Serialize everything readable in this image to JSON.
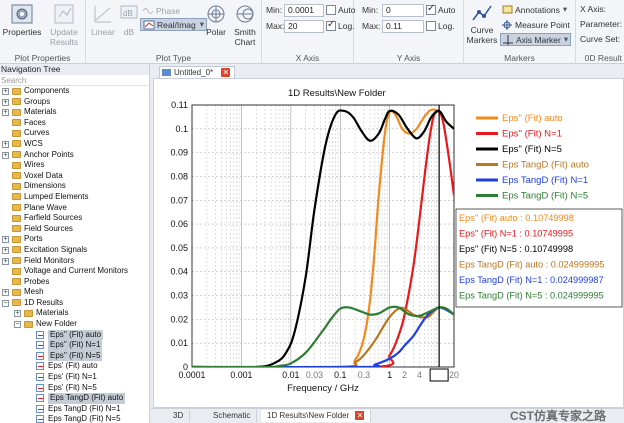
{
  "ribbon": {
    "plot_properties": {
      "label": "Plot Properties",
      "properties_btn": "Properties",
      "update_btn": "Update Results"
    },
    "plot_type": {
      "label": "Plot Type",
      "linear": "Linear",
      "db": "dB",
      "phase": "Phase",
      "real_imag": "Real/Imag",
      "polar": "Polar",
      "smith": "Smith Chart"
    },
    "x_axis": {
      "label": "X Axis",
      "min_label": "Min:",
      "min_value": "0.0001",
      "max_label": "Max:",
      "max_value": "20",
      "auto_label": "Auto",
      "auto_checked": false,
      "log_label": "Log.",
      "log_checked": true
    },
    "y_axis": {
      "label": "Y Axis",
      "min_label": "Min:",
      "min_value": "0",
      "max_label": "Max:",
      "max_value": "0.11",
      "auto_label": "Auto",
      "auto_checked": true,
      "log_label": "Log.",
      "log_checked": false
    },
    "markers": {
      "label": "Markers",
      "curve_markers": "Curve Markers",
      "annotations": "Annotations",
      "measure_point": "Measure Point",
      "axis_marker": "Axis Marker"
    },
    "od_results": {
      "label": "0D Result",
      "x_axis": "X Axis:",
      "parameter": "Parameter:",
      "curve_set": "Curve Set:"
    }
  },
  "nav": {
    "title": "Navigation Tree",
    "search_placeholder": "Search",
    "items": [
      {
        "label": "Components",
        "level": 0,
        "icon": "folder",
        "exp": "+"
      },
      {
        "label": "Groups",
        "level": 0,
        "icon": "folder",
        "exp": "+"
      },
      {
        "label": "Materials",
        "level": 0,
        "icon": "folder",
        "exp": "+"
      },
      {
        "label": "Faces",
        "level": 0,
        "icon": "folder",
        "exp": ""
      },
      {
        "label": "Curves",
        "level": 0,
        "icon": "folder",
        "exp": ""
      },
      {
        "label": "WCS",
        "level": 0,
        "icon": "folder",
        "exp": "+"
      },
      {
        "label": "Anchor Points",
        "level": 0,
        "icon": "folder",
        "exp": "+"
      },
      {
        "label": "Wires",
        "level": 0,
        "icon": "folder",
        "exp": ""
      },
      {
        "label": "Voxel Data",
        "level": 0,
        "icon": "folder",
        "exp": ""
      },
      {
        "label": "Dimensions",
        "level": 0,
        "icon": "folder",
        "exp": ""
      },
      {
        "label": "Lumped Elements",
        "level": 0,
        "icon": "folder",
        "exp": ""
      },
      {
        "label": "Plane Wave",
        "level": 0,
        "icon": "folder",
        "exp": ""
      },
      {
        "label": "Farfield Sources",
        "level": 0,
        "icon": "folder",
        "exp": ""
      },
      {
        "label": "Field Sources",
        "level": 0,
        "icon": "folder",
        "exp": ""
      },
      {
        "label": "Ports",
        "level": 0,
        "icon": "folder",
        "exp": "+"
      },
      {
        "label": "Excitation Signals",
        "level": 0,
        "icon": "folder",
        "exp": "+"
      },
      {
        "label": "Field Monitors",
        "level": 0,
        "icon": "folder",
        "exp": "+"
      },
      {
        "label": "Voltage and Current Monitors",
        "level": 0,
        "icon": "folder",
        "exp": ""
      },
      {
        "label": "Probes",
        "level": 0,
        "icon": "folder",
        "exp": ""
      },
      {
        "label": "Mesh",
        "level": 0,
        "icon": "folder",
        "exp": "+"
      },
      {
        "label": "1D Results",
        "level": 0,
        "icon": "folder",
        "exp": "−"
      },
      {
        "label": "Materials",
        "level": 1,
        "icon": "folder",
        "exp": "+"
      },
      {
        "label": "New Folder",
        "level": 1,
        "icon": "folder",
        "exp": "−"
      },
      {
        "label": "Eps'' (Fit) auto",
        "level": 2,
        "icon": "result",
        "exp": "",
        "selected": true
      },
      {
        "label": "Eps'' (Fit) N=1",
        "level": 2,
        "icon": "result",
        "exp": "",
        "selected": true
      },
      {
        "label": "Eps'' (Fit) N=5",
        "level": 2,
        "icon": "result",
        "exp": "",
        "selected": true
      },
      {
        "label": "Eps' (Fit) auto",
        "level": 2,
        "icon": "result",
        "exp": ""
      },
      {
        "label": "Eps' (Fit) N=1",
        "level": 2,
        "icon": "result",
        "exp": ""
      },
      {
        "label": "Eps' (Fit) N=5",
        "level": 2,
        "icon": "result",
        "exp": ""
      },
      {
        "label": "Eps TangD (Fit) auto",
        "level": 2,
        "icon": "result",
        "exp": "",
        "selected": true
      },
      {
        "label": "Eps TangD (Fit) N=1",
        "level": 2,
        "icon": "result",
        "exp": ""
      },
      {
        "label": "Eps TangD (Fit) N=5",
        "level": 2,
        "icon": "result",
        "exp": ""
      }
    ]
  },
  "doc_tab": {
    "label": "Untitled_0*",
    "close": "✕"
  },
  "bottom_tabs": [
    {
      "label": "3D",
      "active": false,
      "closable": false
    },
    {
      "label": "Schematic",
      "active": false,
      "closable": false
    },
    {
      "label": "1D Results\\New Folder",
      "active": true,
      "closable": true
    }
  ],
  "watermark": "CST仿真专家之路",
  "colors": {
    "orange": "#f08a1c",
    "red": "#e8181c",
    "black": "#000000",
    "brown": "#b9771e",
    "blue": "#1f3fe0",
    "green": "#2e7d32"
  },
  "chart_data": {
    "type": "line",
    "title": "1D Results\\New Folder",
    "xlabel": "Frequency / GHz",
    "ylabel": "",
    "x_scale": "log",
    "xlim": [
      0.0001,
      20
    ],
    "ylim": [
      0,
      0.11
    ],
    "x_ticks": [
      {
        "v": 0.0001,
        "label": "0.0001",
        "minor": false
      },
      {
        "v": 0.001,
        "label": "0.001",
        "minor": false
      },
      {
        "v": 0.01,
        "label": "0.01",
        "minor": false
      },
      {
        "v": 0.03,
        "label": "0.03",
        "minor": true
      },
      {
        "v": 0.1,
        "label": "0.1",
        "minor": false
      },
      {
        "v": 0.3,
        "label": "0.3",
        "minor": true
      },
      {
        "v": 1,
        "label": "1",
        "minor": false
      },
      {
        "v": 2,
        "label": "2",
        "minor": true
      },
      {
        "v": 4,
        "label": "4",
        "minor": true
      },
      {
        "v": 10,
        "label": "10",
        "minor": false
      },
      {
        "v": 20,
        "label": "20",
        "minor": true
      }
    ],
    "y_ticks": [
      0,
      0.01,
      0.02,
      0.03,
      0.04,
      0.05,
      0.06,
      0.07,
      0.08,
      0.09,
      0.1,
      0.11
    ],
    "grid": true,
    "legend_position": "right",
    "axis_marker_x": 10,
    "series": [
      {
        "name": "Eps'' (Fit) auto",
        "color": "#f08a1c",
        "x": [
          0.0001,
          0.1,
          0.2,
          0.3,
          0.4,
          0.5,
          0.6,
          0.8,
          1.0,
          1.3,
          1.8,
          2.5,
          3.5,
          5,
          7,
          10,
          14,
          20
        ],
        "y": [
          0,
          0,
          0.003,
          0.012,
          0.028,
          0.05,
          0.072,
          0.098,
          0.107,
          0.106,
          0.1,
          0.098,
          0.1,
          0.105,
          0.108,
          0.107,
          0.103,
          0.1
        ]
      },
      {
        "name": "Eps'' (Fit) N=1",
        "color": "#e8181c",
        "x": [
          0.0001,
          0.5,
          1,
          1.5,
          2,
          3,
          4,
          5,
          6,
          7,
          8,
          10,
          12,
          14,
          17,
          20
        ],
        "y": [
          0,
          0,
          0.005,
          0.013,
          0.022,
          0.042,
          0.062,
          0.079,
          0.092,
          0.101,
          0.106,
          0.1075,
          0.103,
          0.095,
          0.083,
          0.072
        ]
      },
      {
        "name": "Eps'' (Fit) N=5",
        "color": "#000000",
        "x": [
          0.0001,
          0.002,
          0.005,
          0.008,
          0.012,
          0.02,
          0.03,
          0.05,
          0.08,
          0.12,
          0.18,
          0.27,
          0.4,
          0.6,
          0.8,
          1.0,
          1.5,
          2.3,
          3.5,
          5,
          7,
          10,
          14,
          20
        ],
        "y": [
          0,
          0,
          0.002,
          0.006,
          0.015,
          0.038,
          0.066,
          0.093,
          0.106,
          0.1075,
          0.105,
          0.099,
          0.095,
          0.098,
          0.104,
          0.1075,
          0.106,
          0.1,
          0.096,
          0.099,
          0.105,
          0.1075,
          0.103,
          0.1
        ]
      },
      {
        "name": "Eps TangD (Fit) auto",
        "color": "#b9771e",
        "x": [
          0.0001,
          0.1,
          0.2,
          0.3,
          0.5,
          0.7,
          1,
          1.5,
          2,
          3,
          4,
          6,
          8,
          10,
          14,
          20
        ],
        "y": [
          0,
          0,
          0.002,
          0.005,
          0.011,
          0.016,
          0.021,
          0.0245,
          0.0245,
          0.022,
          0.021,
          0.021,
          0.0235,
          0.025,
          0.0245,
          0.022
        ]
      },
      {
        "name": "Eps TangD (Fit) N=1",
        "color": "#1f3fe0",
        "x": [
          0.0001,
          0.3,
          0.5,
          1,
          1.5,
          2,
          3,
          4,
          5,
          6,
          8,
          10,
          14,
          20
        ],
        "y": [
          0,
          0,
          0.001,
          0.0035,
          0.006,
          0.009,
          0.013,
          0.017,
          0.02,
          0.022,
          0.024,
          0.025,
          0.024,
          0.022
        ]
      },
      {
        "name": "Eps TangD (Fit) N=5",
        "color": "#2e7d32",
        "x": [
          0.0001,
          0.003,
          0.006,
          0.01,
          0.02,
          0.04,
          0.07,
          0.1,
          0.15,
          0.25,
          0.4,
          0.6,
          1.0,
          1.5,
          2.5,
          4,
          6,
          10,
          14,
          20
        ],
        "y": [
          0,
          0,
          0.0005,
          0.0015,
          0.006,
          0.014,
          0.021,
          0.0245,
          0.025,
          0.0235,
          0.022,
          0.0225,
          0.025,
          0.025,
          0.022,
          0.0215,
          0.023,
          0.025,
          0.0245,
          0.022
        ]
      }
    ],
    "marker_readout": [
      {
        "text": "Eps'' (Fit) auto : 0.10749998",
        "color": "#f08a1c"
      },
      {
        "text": "Eps'' (Fit) N=1 : 0.10749995",
        "color": "#e8181c"
      },
      {
        "text": "Eps'' (Fit) N=5 : 0.10749998",
        "color": "#000000"
      },
      {
        "text": "Eps TangD (Fit) auto : 0.024999995",
        "color": "#b9771e"
      },
      {
        "text": "Eps TangD (Fit) N=1 : 0.024999987",
        "color": "#1f3fe0"
      },
      {
        "text": "Eps TangD (Fit) N=5 : 0.024999995",
        "color": "#2e7d32"
      }
    ]
  }
}
